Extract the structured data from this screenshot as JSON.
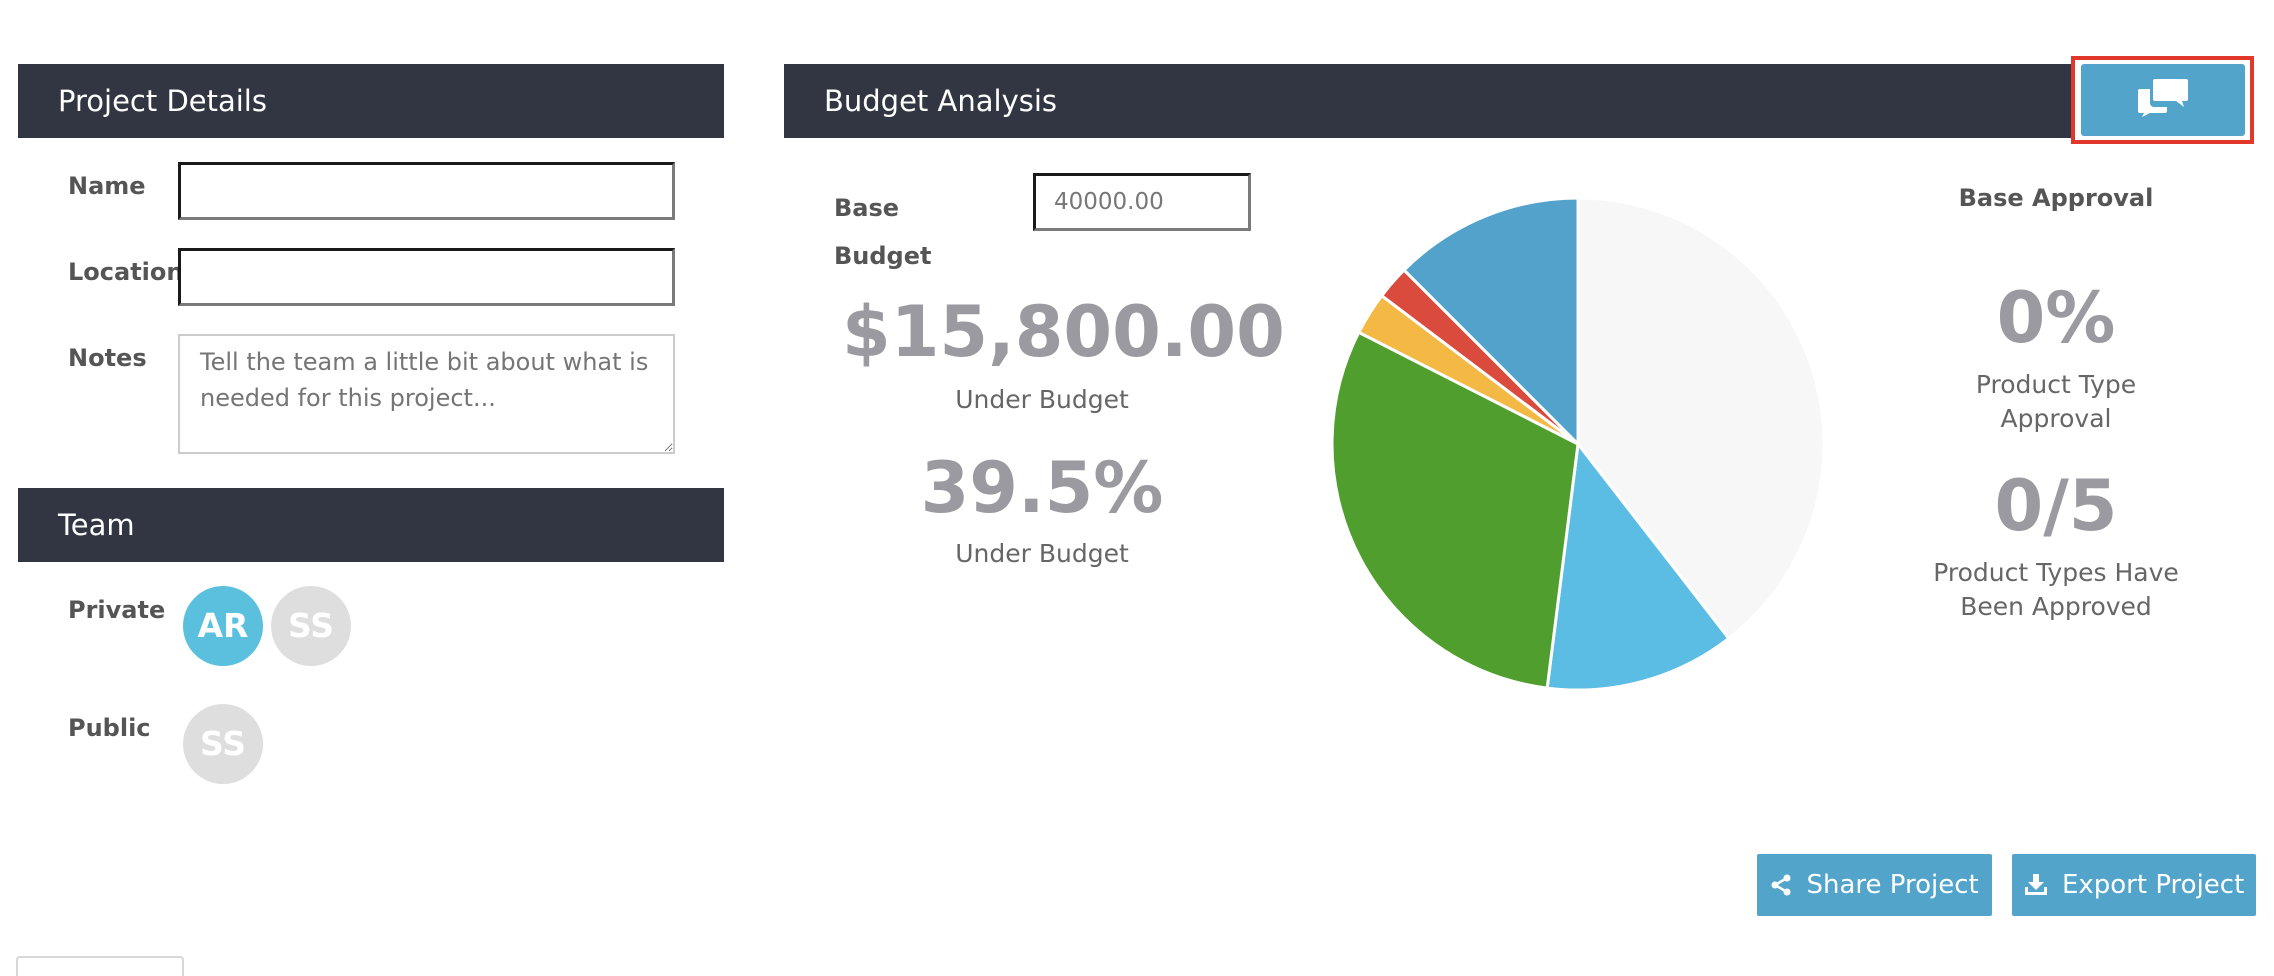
{
  "project_details": {
    "header": "Project Details",
    "name_label": "Name",
    "name_value": "",
    "location_label": "Location",
    "location_value": "",
    "notes_label": "Notes",
    "notes_placeholder": "Tell the team a little bit about what is needed for this project..."
  },
  "team": {
    "header": "Team",
    "private_label": "Private",
    "public_label": "Public",
    "private_members": [
      {
        "initials": "AR",
        "active": true
      },
      {
        "initials": "SS",
        "active": false
      }
    ],
    "public_members": [
      {
        "initials": "SS",
        "active": false
      }
    ]
  },
  "budget_analysis": {
    "header": "Budget Analysis",
    "chat_button_icon": "comments-icon",
    "base_budget_label_line1": "Base",
    "base_budget_label_line2": "Budget",
    "base_budget_value": "40000.00",
    "amount_value": "$15,800.00",
    "amount_caption": "Under Budget",
    "percent_value": "39.5%",
    "percent_caption": "Under Budget",
    "base_approval_label": "Base Approval",
    "product_type_approval_value": "0%",
    "product_type_approval_caption_line1": "Product Type",
    "product_type_approval_caption_line2": "Approval",
    "approved_count_value": "0/5",
    "approved_count_caption_line1": "Product Types Have",
    "approved_count_caption_line2": "Been Approved"
  },
  "chart_data": {
    "type": "pie",
    "values": [
      39.5,
      12.5,
      30.5,
      2.8,
      2.2,
      12.5
    ],
    "colors": [
      "#f7f7f7",
      "#5bbce4",
      "#4f9e2e",
      "#f4b944",
      "#db4b3d",
      "#53a2cb"
    ],
    "start_angle_deg": 0,
    "direction": "clockwise"
  },
  "actions": {
    "share_label": "Share Project",
    "export_label": "Export Project",
    "share_icon": "share-icon",
    "export_icon": "download-icon"
  },
  "colors": {
    "header_bg": "#323642",
    "button_bg": "#52a4cb",
    "highlight_border": "#e0392b",
    "avatar_active": "#5bc0de",
    "avatar_inactive": "#dedede"
  }
}
